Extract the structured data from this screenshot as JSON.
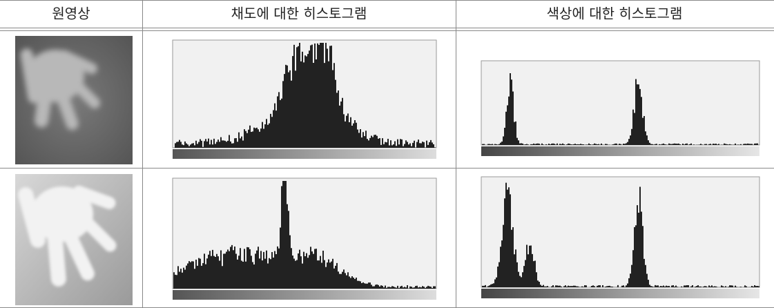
{
  "table": {
    "header": [
      "원영상",
      "채도에 대한 히스토그램",
      "색상에 대한 히스토그램"
    ]
  }
}
